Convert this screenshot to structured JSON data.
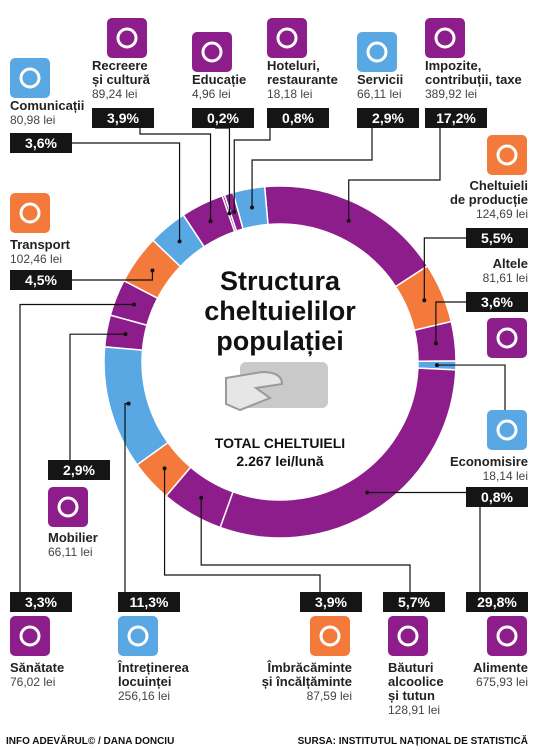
{
  "chart_data": {
    "type": "donut",
    "title": [
      "Structura",
      "cheltuielilor",
      "populației"
    ],
    "total_label": "TOTAL CHELTUIELI",
    "total_value_label": "2.267 lei/lună",
    "categories": [
      [
        "Impozite,",
        "contribuții, taxe"
      ],
      [
        "Cheltuieli",
        "de producție"
      ],
      [
        "Altele"
      ],
      [
        "Economisire"
      ],
      [
        "Alimente"
      ],
      [
        "Băuturi",
        "alcoolice",
        "și tutun"
      ],
      [
        "Îmbrăcăminte",
        "și încălțăminte"
      ],
      [
        "Întreținerea",
        "locuinței"
      ],
      [
        "Mobilier"
      ],
      [
        "Sănătate"
      ],
      [
        "Transport"
      ],
      [
        "Comunicații"
      ],
      [
        "Recreere",
        "și cultură"
      ],
      [
        "Educație"
      ],
      [
        "Hoteluri,",
        "restaurante"
      ],
      [
        "Servicii"
      ]
    ],
    "values": [
      389.92,
      124.69,
      81.61,
      18.14,
      675.93,
      128.91,
      87.59,
      256.16,
      66.11,
      76.02,
      102.46,
      80.98,
      89.24,
      4.96,
      18.18,
      66.11
    ],
    "value_labels": [
      "389,92 lei",
      "124,69 lei",
      "81,61 lei",
      "18,14 lei",
      "675,93 lei",
      "128,91 lei",
      "87,59 lei",
      "256,16 lei",
      "66,11 lei",
      "76,02 lei",
      "102,46 lei",
      "80,98 lei",
      "89,24 lei",
      "4,96 lei",
      "18,18 lei",
      "66,11 lei"
    ],
    "shares": [
      17.2,
      5.5,
      3.6,
      0.8,
      29.8,
      5.7,
      3.9,
      11.3,
      2.9,
      3.3,
      4.5,
      3.6,
      3.9,
      0.2,
      0.8,
      2.9
    ],
    "share_labels": [
      "17,2%",
      "5,5%",
      "3,6%",
      "0,8%",
      "29,8%",
      "5,7%",
      "3,9%",
      "11,3%",
      "2,9%",
      "3,3%",
      "4,5%",
      "3,6%",
      "3,9%",
      "0,2%",
      "0,8%",
      "2,9%"
    ],
    "colors": [
      "#8c1d8a",
      "#f47a3c",
      "#8c1d8a",
      "#59a7e3",
      "#8c1d8a",
      "#8c1d8a",
      "#f47a3c",
      "#59a7e3",
      "#8c1d8a",
      "#8c1d8a",
      "#f47a3c",
      "#59a7e3",
      "#8c1d8a",
      "#8c1d8a",
      "#8c1d8a",
      "#59a7e3"
    ],
    "credit": "INFO ADEVĂRUL© / DANA DONCIU",
    "source": "SURSA: INSTITUTUL NAȚIONAL DE STATISTICĂ"
  }
}
